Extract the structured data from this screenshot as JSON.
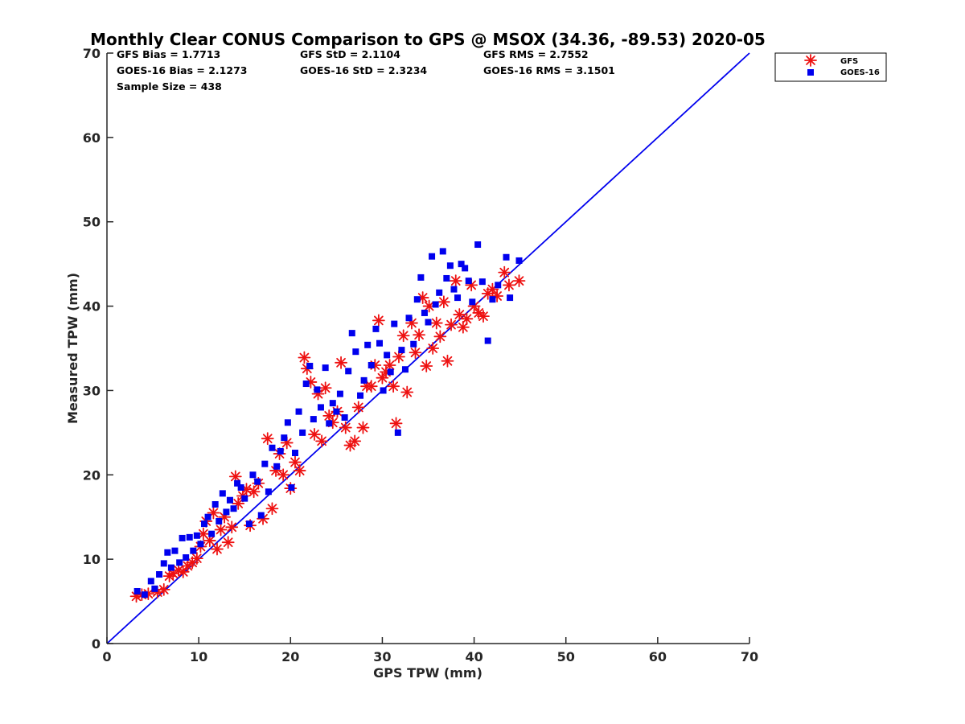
{
  "chart_data": {
    "type": "scatter",
    "title": "Monthly Clear CONUS Comparison to GPS @ MSOX (34.36, -89.53) 2020-05",
    "xlabel": "GPS TPW (mm)",
    "ylabel": "Measured TPW (mm)",
    "xlim": [
      0,
      70
    ],
    "ylim": [
      0,
      70
    ],
    "xticks": [
      "0",
      "10",
      "20",
      "30",
      "40",
      "50",
      "60",
      "70"
    ],
    "yticks": [
      "0",
      "10",
      "20",
      "30",
      "40",
      "50",
      "60",
      "70"
    ],
    "grid": false,
    "legend_position": "top-right, outside plot",
    "stats": [
      [
        "GFS Bias = 1.7713",
        "GFS StD = 2.1104",
        "GFS RMS = 2.7552"
      ],
      [
        "GOES-16 Bias = 2.1273",
        "GOES-16 StD = 2.3234",
        "GOES-16 RMS = 3.1501"
      ],
      [
        "Sample Size = 438",
        "",
        ""
      ]
    ],
    "reference_line": {
      "name": "1:1 line",
      "color": "#0000ee",
      "x": [
        0,
        70
      ],
      "y": [
        0,
        70
      ]
    },
    "series": [
      {
        "name": "GFS",
        "marker": "asterisk",
        "color": "#ee1111",
        "points": [
          [
            3.2,
            5.6
          ],
          [
            3.8,
            5.8
          ],
          [
            4.5,
            5.9
          ],
          [
            5.5,
            6.1
          ],
          [
            6.2,
            6.4
          ],
          [
            6.8,
            8.0
          ],
          [
            7.2,
            8.3
          ],
          [
            7.8,
            8.7
          ],
          [
            8.3,
            8.5
          ],
          [
            8.8,
            9.2
          ],
          [
            9.3,
            9.6
          ],
          [
            9.8,
            10.1
          ],
          [
            10.2,
            11.5
          ],
          [
            10.5,
            13.0
          ],
          [
            10.8,
            14.5
          ],
          [
            11.2,
            12.2
          ],
          [
            11.6,
            15.5
          ],
          [
            12.0,
            11.2
          ],
          [
            12.4,
            13.5
          ],
          [
            12.8,
            15.0
          ],
          [
            13.2,
            12.0
          ],
          [
            13.6,
            13.8
          ],
          [
            14.0,
            19.8
          ],
          [
            14.3,
            16.6
          ],
          [
            14.8,
            17.5
          ],
          [
            15.2,
            18.3
          ],
          [
            15.6,
            14.0
          ],
          [
            16.0,
            18.0
          ],
          [
            16.5,
            19.0
          ],
          [
            17.0,
            14.8
          ],
          [
            17.5,
            24.3
          ],
          [
            18.0,
            16.0
          ],
          [
            18.4,
            20.5
          ],
          [
            18.8,
            22.5
          ],
          [
            19.2,
            20.0
          ],
          [
            19.6,
            23.8
          ],
          [
            20.0,
            18.4
          ],
          [
            20.5,
            21.5
          ],
          [
            21.0,
            20.5
          ],
          [
            21.5,
            33.9
          ],
          [
            21.8,
            32.6
          ],
          [
            22.2,
            31.0
          ],
          [
            22.6,
            24.8
          ],
          [
            23.0,
            29.6
          ],
          [
            23.4,
            24.0
          ],
          [
            23.8,
            30.3
          ],
          [
            24.2,
            27.0
          ],
          [
            24.6,
            26.2
          ],
          [
            25.1,
            27.5
          ],
          [
            25.5,
            33.3
          ],
          [
            26.0,
            25.6
          ],
          [
            26.5,
            23.5
          ],
          [
            27.0,
            24.0
          ],
          [
            27.4,
            28.0
          ],
          [
            27.9,
            25.6
          ],
          [
            28.3,
            30.5
          ],
          [
            28.8,
            30.5
          ],
          [
            29.2,
            33.0
          ],
          [
            29.6,
            38.3
          ],
          [
            30.0,
            31.5
          ],
          [
            30.4,
            32.2
          ],
          [
            30.8,
            33.0
          ],
          [
            31.2,
            30.5
          ],
          [
            31.5,
            26.1
          ],
          [
            31.8,
            34.0
          ],
          [
            32.3,
            36.5
          ],
          [
            32.7,
            29.8
          ],
          [
            33.2,
            38.0
          ],
          [
            33.6,
            34.5
          ],
          [
            34.0,
            36.6
          ],
          [
            34.4,
            41.0
          ],
          [
            34.8,
            32.9
          ],
          [
            35.1,
            40.0
          ],
          [
            35.5,
            35.0
          ],
          [
            35.9,
            38.0
          ],
          [
            36.3,
            36.4
          ],
          [
            36.7,
            40.5
          ],
          [
            37.1,
            33.5
          ],
          [
            37.5,
            37.8
          ],
          [
            38.0,
            43.0
          ],
          [
            38.4,
            39.0
          ],
          [
            38.8,
            37.5
          ],
          [
            39.2,
            38.5
          ],
          [
            39.7,
            42.5
          ],
          [
            40.0,
            40.0
          ],
          [
            40.5,
            39.2
          ],
          [
            41.0,
            38.8
          ],
          [
            41.5,
            41.5
          ],
          [
            42.0,
            42.0
          ],
          [
            42.5,
            41.2
          ],
          [
            43.3,
            44.0
          ],
          [
            43.8,
            42.5
          ],
          [
            44.9,
            43.0
          ]
        ]
      },
      {
        "name": "GOES-16",
        "marker": "square",
        "color": "#0000ee",
        "points": [
          [
            3.3,
            6.2
          ],
          [
            4.1,
            5.8
          ],
          [
            4.8,
            7.4
          ],
          [
            5.2,
            6.5
          ],
          [
            5.7,
            8.2
          ],
          [
            6.2,
            9.5
          ],
          [
            6.6,
            10.8
          ],
          [
            7.0,
            9.0
          ],
          [
            7.4,
            11.0
          ],
          [
            7.9,
            9.6
          ],
          [
            8.2,
            12.5
          ],
          [
            8.6,
            10.2
          ],
          [
            9.0,
            12.6
          ],
          [
            9.4,
            11.0
          ],
          [
            9.8,
            12.8
          ],
          [
            10.2,
            11.8
          ],
          [
            10.6,
            14.2
          ],
          [
            11.0,
            15.0
          ],
          [
            11.4,
            13.0
          ],
          [
            11.8,
            16.5
          ],
          [
            12.2,
            14.5
          ],
          [
            12.6,
            17.8
          ],
          [
            13.0,
            15.6
          ],
          [
            13.4,
            17.0
          ],
          [
            13.8,
            16.0
          ],
          [
            14.2,
            19.0
          ],
          [
            14.6,
            18.5
          ],
          [
            15.0,
            17.2
          ],
          [
            15.5,
            14.2
          ],
          [
            15.9,
            20.0
          ],
          [
            16.4,
            19.2
          ],
          [
            16.8,
            15.2
          ],
          [
            17.2,
            21.3
          ],
          [
            17.6,
            18.0
          ],
          [
            18.0,
            23.2
          ],
          [
            18.5,
            21.0
          ],
          [
            18.9,
            22.8
          ],
          [
            19.3,
            24.4
          ],
          [
            19.7,
            26.2
          ],
          [
            20.1,
            18.5
          ],
          [
            20.5,
            22.6
          ],
          [
            20.9,
            27.5
          ],
          [
            21.3,
            25.0
          ],
          [
            21.7,
            30.8
          ],
          [
            22.1,
            32.9
          ],
          [
            22.5,
            26.6
          ],
          [
            22.9,
            30.1
          ],
          [
            23.3,
            28.0
          ],
          [
            23.8,
            32.7
          ],
          [
            24.2,
            26.1
          ],
          [
            24.6,
            28.5
          ],
          [
            25.0,
            27.5
          ],
          [
            25.4,
            29.6
          ],
          [
            25.9,
            26.8
          ],
          [
            26.3,
            32.3
          ],
          [
            26.7,
            36.8
          ],
          [
            27.1,
            34.6
          ],
          [
            27.6,
            29.4
          ],
          [
            28.0,
            31.2
          ],
          [
            28.4,
            35.4
          ],
          [
            28.8,
            33.0
          ],
          [
            29.3,
            37.3
          ],
          [
            29.7,
            35.6
          ],
          [
            30.1,
            30.0
          ],
          [
            30.5,
            34.2
          ],
          [
            30.9,
            32.2
          ],
          [
            31.3,
            37.9
          ],
          [
            31.7,
            25.0
          ],
          [
            32.1,
            34.8
          ],
          [
            32.5,
            32.5
          ],
          [
            32.9,
            38.6
          ],
          [
            33.4,
            35.5
          ],
          [
            33.8,
            40.8
          ],
          [
            34.2,
            43.4
          ],
          [
            34.6,
            39.2
          ],
          [
            35.0,
            38.1
          ],
          [
            35.4,
            45.9
          ],
          [
            35.8,
            40.2
          ],
          [
            36.2,
            41.6
          ],
          [
            36.6,
            46.5
          ],
          [
            37.0,
            43.3
          ],
          [
            37.4,
            44.8
          ],
          [
            37.8,
            42.0
          ],
          [
            38.2,
            41.0
          ],
          [
            38.6,
            45.0
          ],
          [
            39.0,
            44.5
          ],
          [
            39.4,
            43.0
          ],
          [
            39.8,
            40.5
          ],
          [
            40.4,
            47.3
          ],
          [
            40.9,
            42.9
          ],
          [
            41.5,
            35.9
          ],
          [
            42.0,
            40.8
          ],
          [
            42.6,
            42.5
          ],
          [
            43.5,
            45.8
          ],
          [
            43.9,
            41.0
          ],
          [
            44.9,
            45.4
          ]
        ]
      }
    ]
  }
}
